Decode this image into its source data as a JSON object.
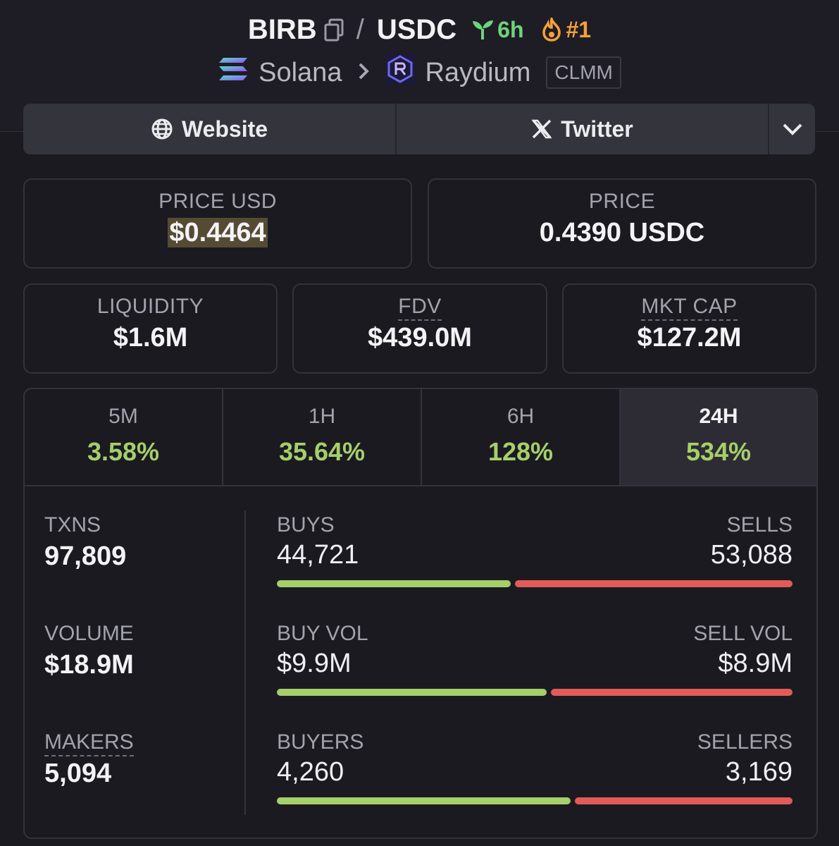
{
  "header": {
    "base": "BIRB",
    "sep": "/",
    "quote": "USDC",
    "age": "6h",
    "rank": "#1",
    "chain": "Solana",
    "dex": "Raydium",
    "pool_type": "CLMM",
    "icons": [
      "copy-icon",
      "sprout-icon",
      "flame-icon",
      "solana-logo-icon",
      "chevron-right-icon",
      "raydium-logo-icon"
    ]
  },
  "links": {
    "website": "Website",
    "twitter": "Twitter"
  },
  "price": {
    "usd_label": "PRICE USD",
    "usd_value": "$0.4464",
    "native_label": "PRICE",
    "native_value": "0.4390 USDC"
  },
  "metrics": {
    "liquidity_label": "LIQUIDITY",
    "liquidity_value": "$1.6M",
    "fdv_label": "FDV",
    "fdv_value": "$439.0M",
    "mcap_label": "MKT CAP",
    "mcap_value": "$127.2M"
  },
  "tabs": [
    {
      "label": "5M",
      "value": "3.58%"
    },
    {
      "label": "1H",
      "value": "35.64%"
    },
    {
      "label": "6H",
      "value": "128%"
    },
    {
      "label": "24H",
      "value": "534%"
    }
  ],
  "activity": {
    "txns_label": "TXNS",
    "txns_value": "97,809",
    "volume_label": "VOLUME",
    "volume_value": "$18.9M",
    "makers_label": "MAKERS",
    "makers_value": "5,094",
    "buys_label": "BUYS",
    "buys_value": "44,721",
    "sells_label": "SELLS",
    "sells_value": "53,088",
    "buyvol_label": "BUY VOL",
    "buyvol_value": "$9.9M",
    "sellvol_label": "SELL VOL",
    "sellvol_value": "$8.9M",
    "buyers_label": "BUYERS",
    "buyers_value": "4,260",
    "sellers_label": "SELLERS",
    "sellers_value": "3,169",
    "buys_ratio": 0.4572,
    "buyvol_ratio": 0.527,
    "buyers_ratio": 0.5735
  },
  "colors": {
    "buy": "#a5cf6a",
    "sell": "#e25b58",
    "age": "#6fd47a",
    "rank": "#f5a03a"
  }
}
